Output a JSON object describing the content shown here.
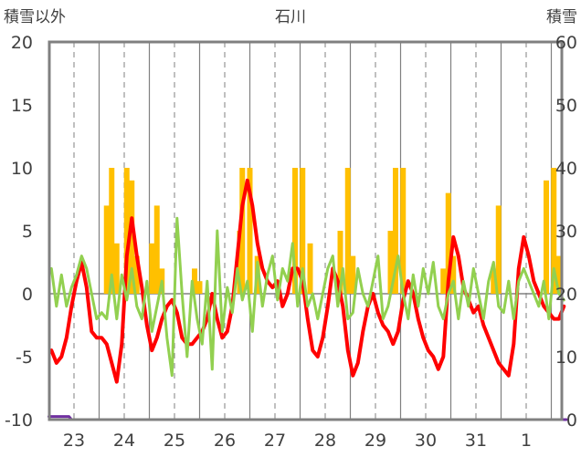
{
  "chart_data": {
    "type": "line",
    "title": "石川",
    "ylabel_left": "積雪以外",
    "ylabel_right": "積雪",
    "ylim_left": [
      -10,
      20
    ],
    "ylim_right": [
      0,
      60
    ],
    "yticks_left": [
      "20",
      "15",
      "10",
      "5",
      "0",
      "-5",
      "-10"
    ],
    "yticks_right": [
      "60",
      "50",
      "40",
      "30",
      "20",
      "10",
      "0"
    ],
    "x_days": [
      "23",
      "24",
      "25",
      "26",
      "27",
      "28",
      "29",
      "30",
      "31",
      "1"
    ],
    "grid": "vertical dashed at 3h intervals, solid at day boundaries",
    "series": [
      {
        "kind": "bar",
        "axis": "left",
        "color": "#FFC000",
        "x_day": [
          0.65,
          0.75,
          0.85,
          1.05,
          1.15,
          1.25,
          1.55,
          1.65,
          1.75,
          2.4,
          2.5,
          3.3,
          3.35,
          3.5,
          3.65,
          4.4,
          4.55,
          4.7,
          5.3,
          5.45,
          5.55,
          6.3,
          6.4,
          6.55,
          7.35,
          7.45,
          7.55,
          8.35,
          8.45,
          9.4,
          9.55,
          9.65
        ],
        "values": [
          7,
          10,
          4,
          10,
          9,
          3,
          4,
          7,
          2,
          2,
          1,
          5,
          10,
          10,
          3,
          10,
          10,
          4,
          5,
          10,
          3,
          5,
          10,
          10,
          2,
          8,
          3,
          2,
          7,
          9,
          10,
          3
        ]
      },
      {
        "kind": "line",
        "axis": "left",
        "color": "#FF0000",
        "x_day": [
          -0.45,
          -0.35,
          -0.25,
          -0.15,
          -0.05,
          0.05,
          0.15,
          0.25,
          0.35,
          0.45,
          0.55,
          0.65,
          0.75,
          0.85,
          0.95,
          1.05,
          1.15,
          1.25,
          1.35,
          1.45,
          1.55,
          1.65,
          1.75,
          1.85,
          1.95,
          2.05,
          2.15,
          2.25,
          2.35,
          2.45,
          2.55,
          2.65,
          2.75,
          2.85,
          2.95,
          3.05,
          3.15,
          3.25,
          3.35,
          3.45,
          3.55,
          3.65,
          3.75,
          3.85,
          3.95,
          4.05,
          4.15,
          4.25,
          4.35,
          4.45,
          4.55,
          4.65,
          4.75,
          4.85,
          4.95,
          5.05,
          5.15,
          5.25,
          5.35,
          5.45,
          5.55,
          5.65,
          5.75,
          5.85,
          5.95,
          6.05,
          6.15,
          6.25,
          6.35,
          6.45,
          6.55,
          6.65,
          6.75,
          6.85,
          6.95,
          7.05,
          7.15,
          7.25,
          7.35,
          7.45,
          7.55,
          7.65,
          7.75,
          7.85,
          7.95,
          8.05,
          8.15,
          8.25,
          8.35,
          8.45,
          8.55,
          8.65,
          8.75,
          8.85,
          8.95,
          9.05,
          9.15,
          9.25,
          9.35,
          9.45,
          9.55,
          9.65,
          9.75
        ],
        "values": [
          -4.5,
          -5.5,
          -5,
          -3.5,
          -1,
          1,
          2.5,
          0.5,
          -3,
          -3.5,
          -3.5,
          -4,
          -5.5,
          -7,
          -4,
          3,
          6,
          3,
          0.5,
          -2.5,
          -4.5,
          -3.5,
          -2,
          -1,
          -0.5,
          -1.5,
          -3.5,
          -4,
          -4,
          -3.5,
          -3,
          -2,
          0,
          -2,
          -3.5,
          -3,
          -1,
          3,
          7,
          9,
          7,
          4,
          2,
          1,
          0.5,
          1,
          -1,
          0,
          2,
          2,
          1,
          -2,
          -4.5,
          -5,
          -3.5,
          -1,
          2,
          1,
          -1,
          -4.5,
          -6.5,
          -5.5,
          -3,
          -1,
          0,
          -1.5,
          -2.5,
          -3,
          -4,
          -3,
          -0.5,
          1,
          0,
          -2,
          -3.5,
          -4.5,
          -5,
          -6,
          -5,
          1,
          4.5,
          3,
          0.5,
          -0.5,
          -1.5,
          -1,
          -2.5,
          -3.5,
          -4.5,
          -5.5,
          -6,
          -6.5,
          -4,
          2,
          4.5,
          3,
          1,
          0,
          -1,
          -1.5,
          -2,
          -2,
          -1
        ]
      },
      {
        "kind": "line",
        "axis": "left",
        "color": "#92D050",
        "x_day": [
          -0.45,
          -0.35,
          -0.25,
          -0.15,
          -0.05,
          0.05,
          0.15,
          0.25,
          0.35,
          0.45,
          0.55,
          0.65,
          0.75,
          0.85,
          0.95,
          1.05,
          1.15,
          1.25,
          1.35,
          1.45,
          1.55,
          1.65,
          1.75,
          1.85,
          1.95,
          2.05,
          2.15,
          2.25,
          2.35,
          2.45,
          2.55,
          2.65,
          2.75,
          2.85,
          2.95,
          3.05,
          3.15,
          3.25,
          3.35,
          3.45,
          3.55,
          3.65,
          3.75,
          3.85,
          3.95,
          4.05,
          4.15,
          4.25,
          4.35,
          4.45,
          4.55,
          4.65,
          4.75,
          4.85,
          4.95,
          5.05,
          5.15,
          5.25,
          5.35,
          5.45,
          5.55,
          5.65,
          5.75,
          5.85,
          5.95,
          6.05,
          6.15,
          6.25,
          6.35,
          6.45,
          6.55,
          6.65,
          6.75,
          6.85,
          6.95,
          7.05,
          7.15,
          7.25,
          7.35,
          7.45,
          7.55,
          7.65,
          7.75,
          7.85,
          7.95,
          8.05,
          8.15,
          8.25,
          8.35,
          8.45,
          8.55,
          8.65,
          8.75,
          8.85,
          8.95,
          9.05,
          9.15,
          9.25,
          9.35,
          9.45,
          9.55,
          9.65,
          9.75
        ],
        "values": [
          2,
          -1,
          1.5,
          -1,
          0.5,
          1.5,
          3,
          2,
          0,
          -2,
          -1.5,
          -2,
          1.5,
          -2,
          1.5,
          -0.5,
          2,
          -1,
          -2,
          1,
          -3,
          -1,
          1,
          -3.5,
          -6.5,
          6,
          0,
          -5,
          1,
          -2,
          -4,
          1,
          -6,
          5,
          -3,
          0.5,
          -1.5,
          2,
          -0.5,
          1,
          -3,
          2.5,
          -1,
          1.5,
          3,
          -0.5,
          2,
          1,
          4,
          -1,
          2,
          -1,
          0,
          -2,
          0,
          2,
          3,
          -1,
          2,
          -2,
          -1.5,
          2,
          0,
          -1,
          1,
          3,
          -2,
          -1,
          1,
          3,
          0,
          -2,
          1.5,
          -1,
          2,
          0,
          2.5,
          -1,
          -2,
          0,
          1,
          -2,
          1,
          -1,
          2,
          0,
          -2,
          1,
          2.5,
          -1,
          -1.5,
          1,
          -2,
          1,
          2,
          1,
          0,
          -1,
          1,
          -2,
          2,
          0,
          -0.5
        ]
      },
      {
        "kind": "line",
        "axis": "right",
        "color": "#7030A0",
        "x_day": [
          -0.5,
          -0.1,
          -0.05,
          9.8
        ],
        "values": [
          0.5,
          0.5,
          0,
          0
        ]
      }
    ]
  }
}
